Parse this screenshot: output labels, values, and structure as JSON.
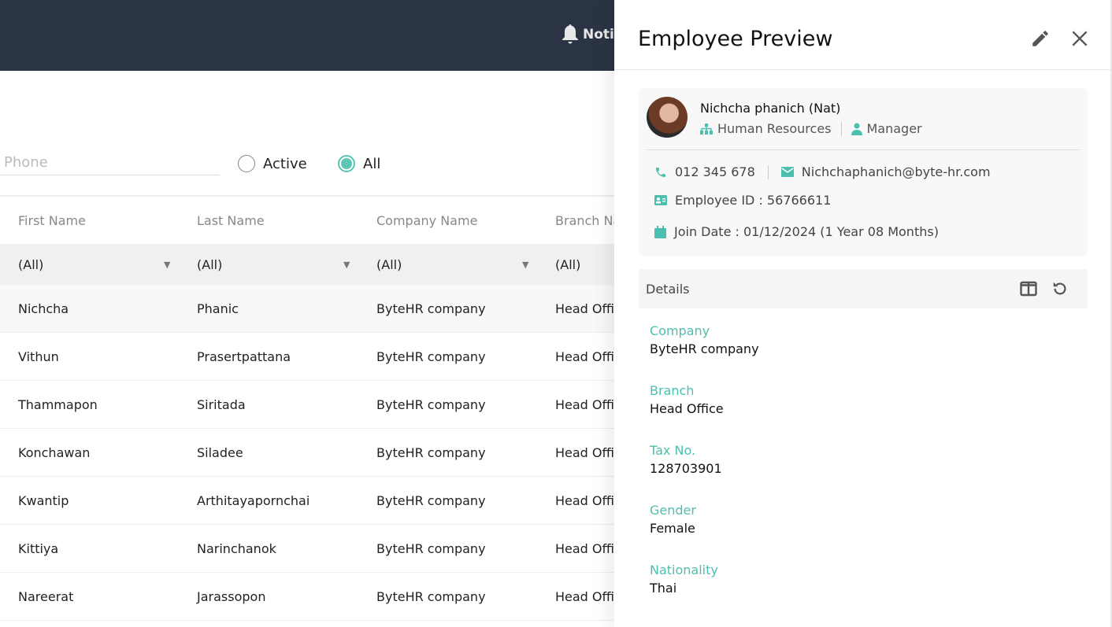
{
  "topbar": {
    "notification_label": "Noti"
  },
  "filters": {
    "phone_placeholder": "Phone",
    "radio_active": "Active",
    "radio_all": "All",
    "selected": "All"
  },
  "table": {
    "headers": [
      "First Name",
      "Last Name",
      "Company Name",
      "Branch Na"
    ],
    "filter_values": [
      "(All)",
      "(All)",
      "(All)",
      "(All)"
    ],
    "rows": [
      [
        "Nichcha",
        "Phanic",
        "ByteHR company",
        "Head Offi"
      ],
      [
        "Vithun",
        "Prasertpattana",
        "ByteHR company",
        "Head Offi"
      ],
      [
        "Thammapon",
        "Siritada",
        "ByteHR company",
        "Head Offi"
      ],
      [
        "Konchawan",
        "Siladee",
        "ByteHR company",
        "Head Offi"
      ],
      [
        "Kwantip",
        "Arthitayapornchai",
        "ByteHR company",
        "Head Offi"
      ],
      [
        "Kittiya",
        "Narinchanok",
        "ByteHR company",
        "Head Offi"
      ],
      [
        "Nareerat",
        "Jarassopon",
        "ByteHR company",
        "Head Offi"
      ]
    ]
  },
  "panel": {
    "title": "Employee Preview",
    "profile": {
      "name": "Nichcha phanich (Nat)",
      "department": "Human Resources",
      "position": "Manager",
      "phone": "012 345 678",
      "email": "Nichchaphanich@byte-hr.com",
      "employee_id": "Employee ID : 56766611",
      "join_date": "Join Date : 01/12/2024 (1 Year 08 Months)"
    },
    "details_label": "Details",
    "fields": [
      {
        "label": "Company",
        "value": "ByteHR company"
      },
      {
        "label": "Branch",
        "value": "Head Office"
      },
      {
        "label": "Tax No.",
        "value": "128703901"
      },
      {
        "label": "Gender",
        "value": "Female"
      },
      {
        "label": "Nationality",
        "value": "Thai"
      }
    ]
  },
  "colors": {
    "accent": "#4dbfae",
    "topbar": "#2b3445"
  }
}
